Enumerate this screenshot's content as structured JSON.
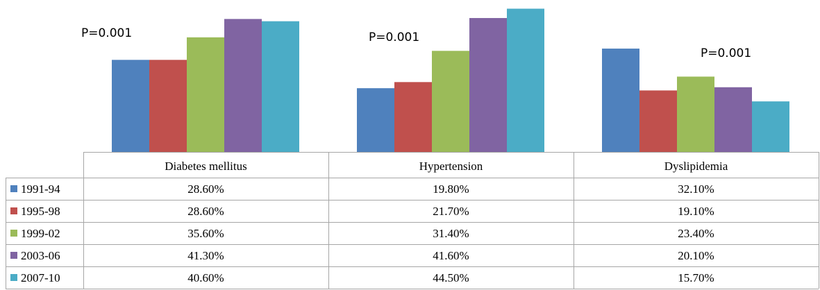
{
  "chart_data": {
    "type": "bar",
    "categories": [
      "Diabetes mellitus",
      "Hypertension",
      "Dyslipidemia"
    ],
    "series": [
      {
        "name": "1991-94",
        "color": "#4f81bd",
        "values": [
          28.6,
          19.8,
          32.1
        ],
        "labels": [
          "28.60%",
          "19.80%",
          "32.10%"
        ]
      },
      {
        "name": "1995-98",
        "color": "#c0504d",
        "values": [
          28.6,
          21.7,
          19.1
        ],
        "labels": [
          "28.60%",
          "21.70%",
          "19.10%"
        ]
      },
      {
        "name": "1999-02",
        "color": "#9bbb59",
        "values": [
          35.6,
          31.4,
          23.4
        ],
        "labels": [
          "35.60%",
          "31.40%",
          "23.40%"
        ]
      },
      {
        "name": "2003-06",
        "color": "#8064a2",
        "values": [
          41.3,
          41.6,
          20.1
        ],
        "labels": [
          "41.30%",
          "41.60%",
          "20.10%"
        ]
      },
      {
        "name": "2007-10",
        "color": "#4bacc6",
        "values": [
          40.6,
          44.5,
          15.7
        ],
        "labels": [
          "40.60%",
          "44.50%",
          "15.70%"
        ]
      }
    ],
    "annotations": [
      "P=0.001",
      "P=0.001",
      "P=0.001"
    ],
    "ylim": [
      0,
      45
    ],
    "legend": "data-table-left",
    "grid": false
  }
}
